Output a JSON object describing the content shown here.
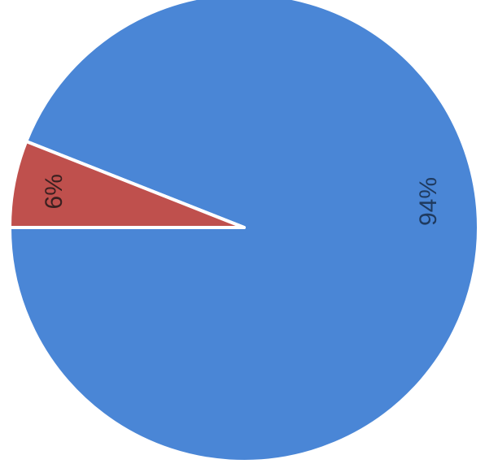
{
  "chart_data": {
    "type": "pie",
    "slices": [
      {
        "label": "94%",
        "value": 94,
        "color": "#4a86d6"
      },
      {
        "label": "6%",
        "value": 6,
        "color": "#bf504d"
      }
    ],
    "legend": "none"
  }
}
